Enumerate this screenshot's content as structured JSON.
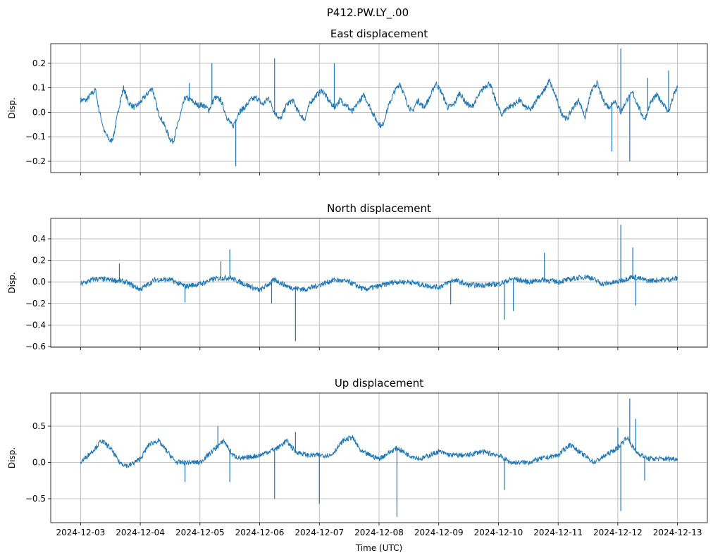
{
  "chart_data": {
    "type": "line",
    "suptitle": "P412.PW.LY_.00",
    "xlabel": "Time (UTC)",
    "x_unit": "days since 2024-12-03",
    "xlim": [
      -0.5,
      10.5
    ],
    "x_ticks": [
      "2024-12-03",
      "2024-12-04",
      "2024-12-05",
      "2024-12-06",
      "2024-12-07",
      "2024-12-08",
      "2024-12-09",
      "2024-12-10",
      "2024-12-11",
      "2024-12-12",
      "2024-12-13"
    ],
    "grid": true,
    "line_color": "#1f77b4",
    "panels": [
      {
        "title": "East displacement",
        "ylabel": "Disp.",
        "ylim": [
          -0.246,
          0.28
        ],
        "y_ticks": [
          -0.2,
          -0.1,
          0.0,
          0.1,
          0.2
        ],
        "y_tick_labels": [
          "−0.2",
          "−0.1",
          "0.0",
          "0.1",
          "0.2"
        ],
        "x": [
          0,
          0.1,
          0.2,
          0.25,
          0.3,
          0.4,
          0.5,
          0.55,
          0.65,
          0.72,
          0.8,
          0.9,
          1.0,
          1.1,
          1.2,
          1.3,
          1.4,
          1.5,
          1.55,
          1.65,
          1.75,
          1.85,
          1.95,
          2.05,
          2.15,
          2.25,
          2.35,
          2.45,
          2.55,
          2.65,
          2.75,
          2.85,
          2.95,
          3.05,
          3.15,
          3.25,
          3.35,
          3.45,
          3.55,
          3.65,
          3.75,
          3.85,
          3.95,
          4.05,
          4.15,
          4.25,
          4.35,
          4.45,
          4.55,
          4.65,
          4.75,
          4.85,
          4.95,
          5.05,
          5.15,
          5.25,
          5.35,
          5.45,
          5.55,
          5.65,
          5.75,
          5.85,
          5.95,
          6.05,
          6.15,
          6.25,
          6.35,
          6.45,
          6.55,
          6.65,
          6.75,
          6.85,
          6.95,
          7.05,
          7.15,
          7.25,
          7.35,
          7.45,
          7.55,
          7.65,
          7.75,
          7.85,
          7.95,
          8.05,
          8.15,
          8.25,
          8.35,
          8.45,
          8.55,
          8.65,
          8.75,
          8.85,
          8.95,
          9.05,
          9.15,
          9.25,
          9.35,
          9.45,
          9.55,
          9.65,
          9.75,
          9.85,
          9.95,
          10
        ],
        "y": [
          0.05,
          0.05,
          0.08,
          0.09,
          0.02,
          -0.08,
          -0.12,
          -0.1,
          0.03,
          0.1,
          0.04,
          0.02,
          0.04,
          0.07,
          0.1,
          0.0,
          -0.05,
          -0.11,
          -0.12,
          -0.03,
          0.06,
          0.05,
          0.03,
          0.03,
          0.01,
          0.06,
          0.05,
          -0.02,
          -0.06,
          0.0,
          0.02,
          0.05,
          0.06,
          0.03,
          0.06,
          0.0,
          -0.03,
          0.03,
          0.05,
          0.0,
          -0.03,
          0.04,
          0.07,
          0.09,
          0.05,
          0.02,
          0.05,
          0.03,
          0.0,
          0.04,
          0.07,
          0.02,
          -0.03,
          -0.06,
          0.02,
          0.08,
          0.12,
          0.05,
          0.0,
          0.05,
          0.02,
          0.06,
          0.12,
          0.08,
          0.02,
          0.03,
          0.08,
          0.04,
          0.02,
          0.06,
          0.1,
          0.12,
          0.05,
          -0.01,
          0.02,
          0.03,
          0.05,
          0.02,
          0.01,
          0.06,
          0.08,
          0.13,
          0.07,
          0.0,
          -0.03,
          0.02,
          0.05,
          -0.02,
          0.08,
          0.12,
          0.05,
          0.02,
          0.05,
          0.0,
          0.05,
          0.08,
          0.02,
          -0.03,
          0.04,
          0.07,
          0.04,
          0.0,
          0.08,
          0.1
        ],
        "spikes": [
          [
            1.82,
            0.12
          ],
          [
            2.2,
            0.2
          ],
          [
            2.6,
            -0.22
          ],
          [
            3.25,
            0.22
          ],
          [
            4.25,
            0.2
          ],
          [
            8.9,
            -0.16
          ],
          [
            9.05,
            0.26
          ],
          [
            9.2,
            -0.2
          ],
          [
            9.5,
            0.14
          ],
          [
            9.85,
            0.17
          ]
        ]
      },
      {
        "title": "North displacement",
        "ylabel": "Disp.",
        "ylim": [
          -0.607,
          0.59
        ],
        "y_ticks": [
          -0.6,
          -0.4,
          -0.2,
          0.0,
          0.2,
          0.4
        ],
        "y_tick_labels": [
          "−0.6",
          "−0.4",
          "−0.2",
          "0.0",
          "0.2",
          "0.4"
        ],
        "x": [
          0,
          0.25,
          0.5,
          0.75,
          1.0,
          1.25,
          1.5,
          1.75,
          2.0,
          2.25,
          2.5,
          2.75,
          3.0,
          3.25,
          3.5,
          3.75,
          4.0,
          4.25,
          4.5,
          4.75,
          5.0,
          5.25,
          5.5,
          5.75,
          6.0,
          6.25,
          6.5,
          6.75,
          7.0,
          7.25,
          7.5,
          7.75,
          8.0,
          8.25,
          8.5,
          8.75,
          9.0,
          9.25,
          9.5,
          9.75,
          10
        ],
        "y": [
          -0.02,
          0.03,
          0.02,
          0.0,
          -0.07,
          0.02,
          0.02,
          -0.04,
          -0.02,
          0.03,
          0.04,
          -0.02,
          -0.08,
          0.02,
          -0.05,
          -0.07,
          -0.03,
          0.02,
          0.0,
          -0.07,
          -0.04,
          0.0,
          0.0,
          -0.03,
          -0.05,
          0.02,
          -0.03,
          -0.03,
          -0.02,
          0.03,
          0.0,
          0.02,
          0.0,
          0.03,
          0.05,
          -0.02,
          0.0,
          0.05,
          0.01,
          0.02,
          0.03
        ],
        "spikes": [
          [
            0.65,
            0.17
          ],
          [
            1.75,
            -0.19
          ],
          [
            2.35,
            0.19
          ],
          [
            2.5,
            0.3
          ],
          [
            3.2,
            -0.2
          ],
          [
            3.6,
            -0.55
          ],
          [
            6.2,
            -0.21
          ],
          [
            7.25,
            -0.27
          ],
          [
            7.77,
            0.27
          ],
          [
            7.1,
            -0.35
          ],
          [
            9.05,
            0.53
          ],
          [
            9.25,
            0.32
          ],
          [
            9.3,
            -0.22
          ]
        ]
      },
      {
        "title": "Up displacement",
        "ylabel": "Disp.",
        "ylim": [
          -0.83,
          0.956
        ],
        "y_ticks": [
          -0.5,
          0.0,
          0.5
        ],
        "y_tick_labels": [
          "−0.5",
          "0.0",
          "0.5"
        ],
        "x": [
          0,
          0.25,
          0.35,
          0.5,
          0.65,
          0.8,
          1.0,
          1.15,
          1.3,
          1.45,
          1.6,
          1.8,
          2.0,
          2.2,
          2.4,
          2.55,
          2.7,
          3.0,
          3.3,
          3.45,
          3.6,
          3.8,
          4.0,
          4.2,
          4.4,
          4.55,
          4.7,
          5.0,
          5.3,
          5.5,
          5.7,
          6.0,
          6.2,
          6.5,
          6.7,
          7.0,
          7.2,
          7.5,
          7.7,
          8.0,
          8.2,
          8.35,
          8.6,
          8.8,
          9.0,
          9.15,
          9.3,
          9.5,
          9.7,
          10
        ],
        "y": [
          0.0,
          0.2,
          0.3,
          0.2,
          0.0,
          -0.05,
          0.05,
          0.25,
          0.3,
          0.15,
          0.0,
          0.0,
          0.0,
          0.15,
          0.3,
          0.1,
          0.05,
          0.1,
          0.2,
          0.3,
          0.15,
          0.1,
          0.1,
          0.1,
          0.3,
          0.35,
          0.15,
          0.05,
          0.2,
          0.1,
          0.05,
          0.15,
          0.1,
          0.1,
          0.15,
          0.1,
          0.0,
          0.0,
          0.05,
          0.1,
          0.25,
          0.15,
          0.0,
          0.1,
          0.2,
          0.35,
          0.15,
          0.05,
          0.05,
          0.05
        ],
        "spikes": [
          [
            1.75,
            -0.27
          ],
          [
            2.3,
            0.5
          ],
          [
            2.5,
            -0.27
          ],
          [
            3.25,
            -0.5
          ],
          [
            3.6,
            0.42
          ],
          [
            4.0,
            -0.57
          ],
          [
            5.3,
            -0.75
          ],
          [
            7.1,
            -0.38
          ],
          [
            9.0,
            0.48
          ],
          [
            9.05,
            -0.67
          ],
          [
            9.2,
            0.88
          ],
          [
            9.3,
            0.6
          ],
          [
            9.45,
            -0.25
          ]
        ]
      }
    ]
  }
}
